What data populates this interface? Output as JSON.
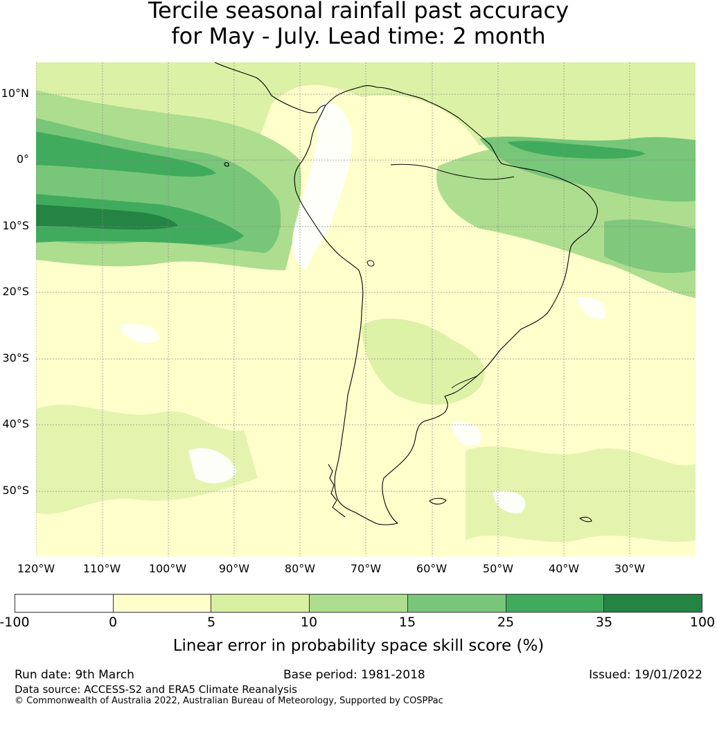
{
  "title": {
    "line1": "Tercile seasonal rainfall past accuracy",
    "line2": "for May - July. Lead time: 2 month"
  },
  "map": {
    "lat_labels": [
      "10°N",
      "0°",
      "10°S",
      "20°S",
      "30°S",
      "40°S",
      "50°S"
    ],
    "lon_labels": [
      "120°W",
      "110°W",
      "100°W",
      "90°W",
      "80°W",
      "70°W",
      "60°W",
      "50°W",
      "40°W",
      "30°W"
    ]
  },
  "colorbar": {
    "ticks": [
      "-100",
      "0",
      "5",
      "10",
      "15",
      "25",
      "35",
      "100"
    ],
    "colors": [
      "#ffffff",
      "#ffffcc",
      "#d9f0a3",
      "#addd8e",
      "#78c679",
      "#41ab5d",
      "#238443"
    ],
    "label": "Linear error in probability space skill score (%)"
  },
  "footer": {
    "run_date": "Run date: 9th March",
    "base_period": "Base period: 1981-2018",
    "issued": "Issued: 19/01/2022",
    "data_source": "Data source: ACCESS-S2 and ERA5 Climate Reanalysis",
    "copyright": "© Commonwealth of Australia 2022, Australian Bureau of Meteorology, Supported by COSPPac"
  }
}
